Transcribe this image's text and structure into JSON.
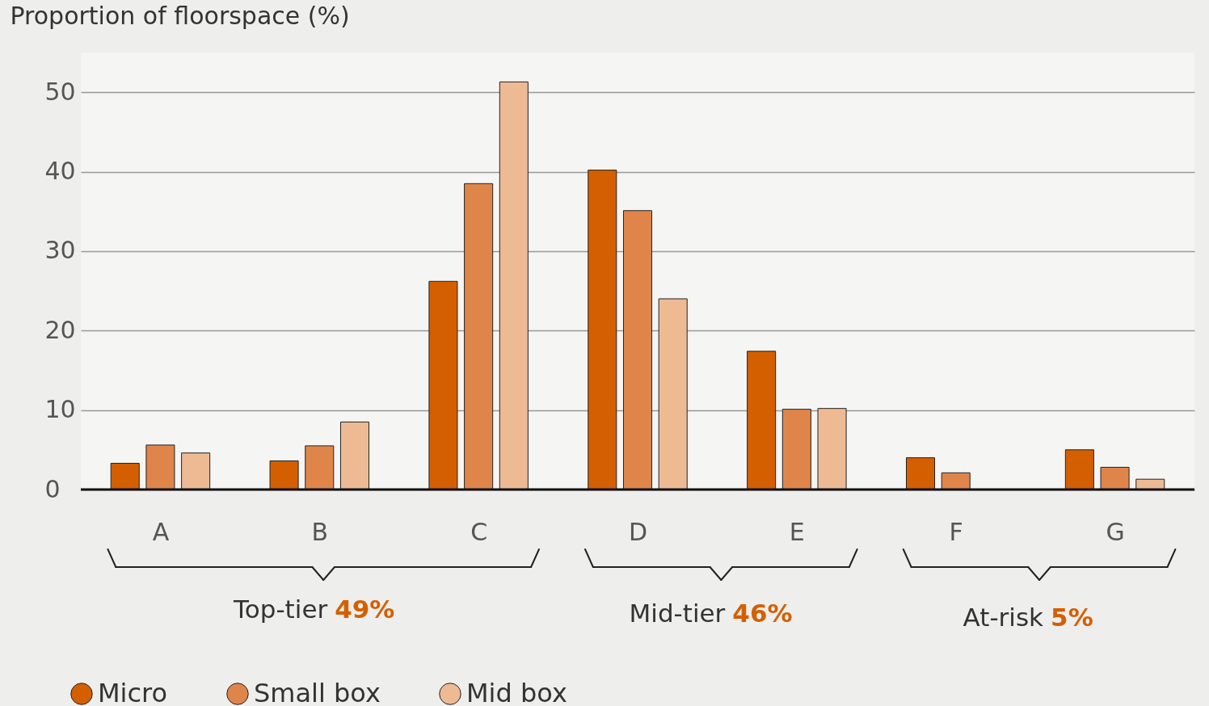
{
  "chart_data": {
    "type": "bar",
    "ylabel": "Proportion of floorspace (%)",
    "categories": [
      "A",
      "B",
      "C",
      "D",
      "E",
      "F",
      "G"
    ],
    "series": [
      {
        "name": "Micro",
        "color": "#d45f00",
        "values": [
          3.3,
          3.6,
          26.2,
          40.2,
          17.4,
          4.0,
          5.0
        ]
      },
      {
        "name": "Small box",
        "color": "#e0854a",
        "values": [
          5.6,
          5.5,
          38.5,
          35.1,
          10.1,
          2.1,
          2.8
        ]
      },
      {
        "name": "Mid box",
        "color": "#eeba94",
        "values": [
          4.6,
          8.5,
          51.3,
          24.0,
          10.2,
          null,
          1.3
        ]
      }
    ],
    "ylim": [
      0,
      55
    ],
    "yticks": [
      0,
      10,
      20,
      30,
      40,
      50
    ],
    "grid": "y",
    "legend": "bottom left",
    "annotations": [
      "Top-tier 49%",
      "Mid-tier 46%",
      "At-risk 5%"
    ]
  }
}
